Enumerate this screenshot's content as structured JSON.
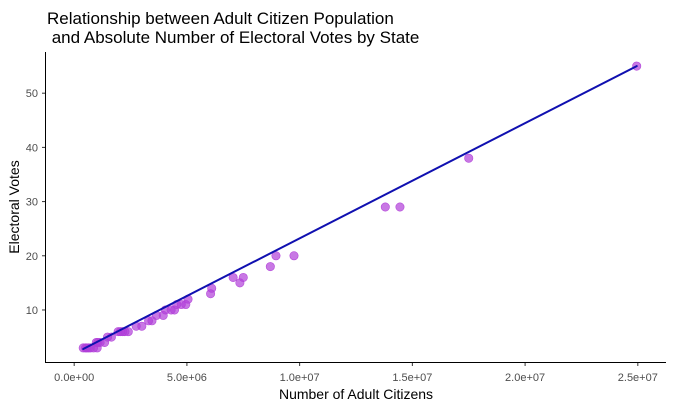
{
  "chart_data": {
    "type": "scatter",
    "title": [
      "Relationship between Adult Citizen Population",
      " and Absolute Number of Electoral Votes by State"
    ],
    "xlabel": "Number of Adult Citizens",
    "ylabel": "Electoral Votes",
    "xlim": [
      -1250000,
      26250000
    ],
    "ylim": [
      0.4,
      57.6
    ],
    "x_ticks": [
      0,
      5000000,
      10000000,
      15000000,
      20000000,
      25000000
    ],
    "x_tick_labels": [
      "0.0e+00",
      "5.0e+06",
      "1.0e+07",
      "1.5e+07",
      "2.0e+07",
      "2.5e+07"
    ],
    "y_ticks": [
      10,
      20,
      30,
      40,
      50
    ],
    "y_tick_labels": [
      "10",
      "20",
      "30",
      "40",
      "50"
    ],
    "grid": false,
    "point_color": "#b03fd8",
    "line_color": "#1010b0",
    "points": [
      {
        "x": 400000,
        "y": 3
      },
      {
        "x": 500000,
        "y": 3
      },
      {
        "x": 560000,
        "y": 3
      },
      {
        "x": 640000,
        "y": 3
      },
      {
        "x": 720000,
        "y": 3
      },
      {
        "x": 860000,
        "y": 3
      },
      {
        "x": 980000,
        "y": 4
      },
      {
        "x": 1020000,
        "y": 3
      },
      {
        "x": 1050000,
        "y": 4
      },
      {
        "x": 1150000,
        "y": 4
      },
      {
        "x": 1350000,
        "y": 4
      },
      {
        "x": 1480000,
        "y": 5
      },
      {
        "x": 1650000,
        "y": 5
      },
      {
        "x": 1950000,
        "y": 6
      },
      {
        "x": 2050000,
        "y": 6
      },
      {
        "x": 2150000,
        "y": 6
      },
      {
        "x": 2250000,
        "y": 6
      },
      {
        "x": 2400000,
        "y": 6
      },
      {
        "x": 2750000,
        "y": 7
      },
      {
        "x": 3000000,
        "y": 7
      },
      {
        "x": 3300000,
        "y": 8
      },
      {
        "x": 3450000,
        "y": 8
      },
      {
        "x": 3650000,
        "y": 9
      },
      {
        "x": 3950000,
        "y": 9
      },
      {
        "x": 4050000,
        "y": 10
      },
      {
        "x": 4300000,
        "y": 10
      },
      {
        "x": 4450000,
        "y": 10
      },
      {
        "x": 4550000,
        "y": 11
      },
      {
        "x": 4750000,
        "y": 11
      },
      {
        "x": 4950000,
        "y": 11
      },
      {
        "x": 5050000,
        "y": 12
      },
      {
        "x": 6050000,
        "y": 13
      },
      {
        "x": 6100000,
        "y": 14
      },
      {
        "x": 7050000,
        "y": 16
      },
      {
        "x": 7350000,
        "y": 15
      },
      {
        "x": 7500000,
        "y": 16
      },
      {
        "x": 8700000,
        "y": 18
      },
      {
        "x": 8950000,
        "y": 20
      },
      {
        "x": 9750000,
        "y": 20
      },
      {
        "x": 13800000,
        "y": 29
      },
      {
        "x": 14450000,
        "y": 29
      },
      {
        "x": 17500000,
        "y": 38
      },
      {
        "x": 24950000,
        "y": 55
      }
    ],
    "fit_line": {
      "x": [
        400000,
        24950000
      ],
      "y": [
        2.8,
        55
      ]
    }
  }
}
